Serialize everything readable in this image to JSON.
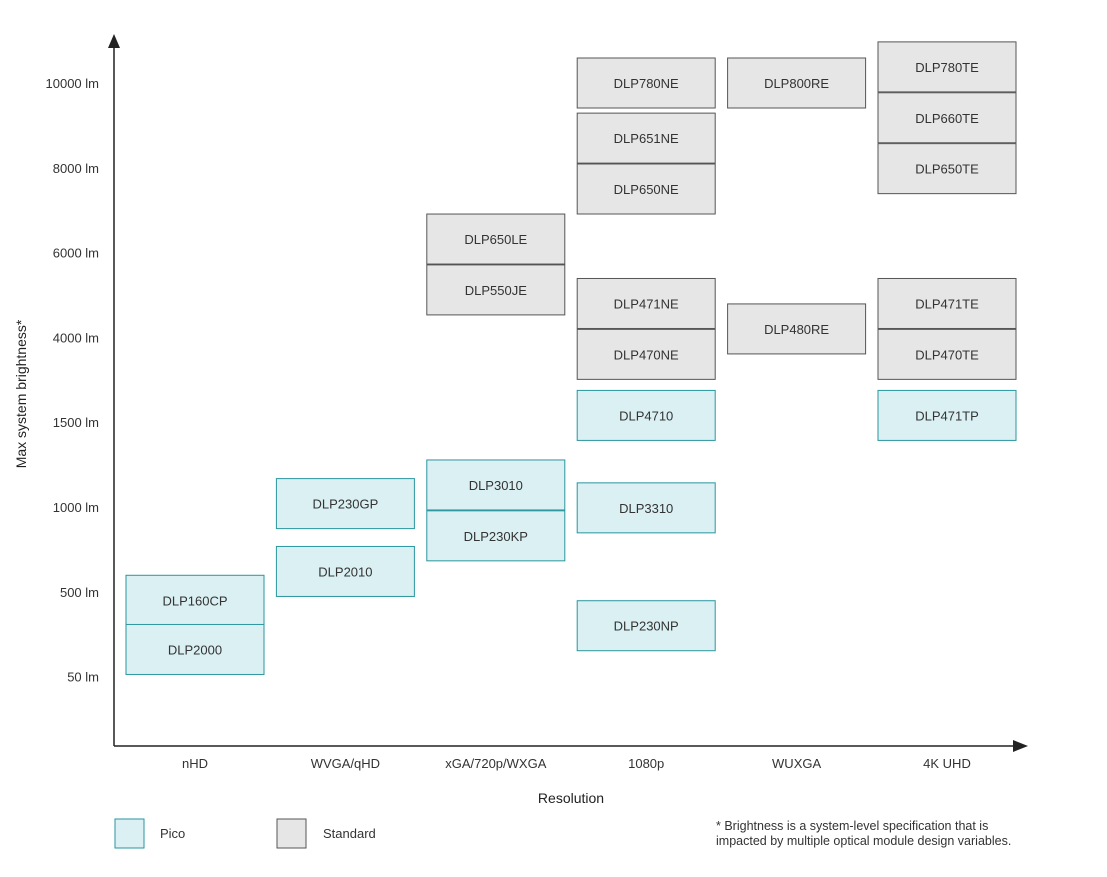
{
  "chart_data": {
    "type": "table",
    "title": "",
    "xlabel": "Resolution",
    "ylabel": "Max system brightness*",
    "categories": [
      "nHD",
      "WVGA/qHD",
      "xGA/720p/WXGA",
      "1080p",
      "WUXGA",
      "4K UHD"
    ],
    "y_ticks": [
      "50 lm",
      "500 lm",
      "1000 lm",
      "1500 lm",
      "4000 lm",
      "6000 lm",
      "8000 lm",
      "10000 lm"
    ],
    "legend": [
      {
        "key": "pico",
        "label": "Pico",
        "color": "#daf0f3",
        "stroke": "#2a969e"
      },
      {
        "key": "standard",
        "label": "Standard",
        "color": "#e6e6e6",
        "stroke": "#555555"
      }
    ],
    "products": [
      {
        "name": "DLP160CP",
        "category": "nHD",
        "type": "pico",
        "brightness_level": 0.9
      },
      {
        "name": "DLP2000",
        "category": "nHD",
        "type": "pico",
        "brightness_level": 0.32
      },
      {
        "name": "DLP230GP",
        "category": "WVGA/qHD",
        "type": "pico",
        "brightness_level": 2.04
      },
      {
        "name": "DLP2010",
        "category": "WVGA/qHD",
        "type": "pico",
        "brightness_level": 1.24
      },
      {
        "name": "DLP3010",
        "category": "xGA/720p/WXGA",
        "type": "pico",
        "brightness_level": 2.26
      },
      {
        "name": "DLP230KP",
        "category": "xGA/720p/WXGA",
        "type": "pico",
        "brightness_level": 1.66
      },
      {
        "name": "DLP780NE",
        "category": "1080p",
        "type": "standard",
        "brightness_level": 7.0
      },
      {
        "name": "DLP651NE",
        "category": "1080p",
        "type": "standard",
        "brightness_level": 6.35
      },
      {
        "name": "DLP650NE",
        "category": "1080p",
        "type": "standard",
        "brightness_level": 5.75
      },
      {
        "name": "DLP471NE",
        "category": "1080p",
        "type": "standard",
        "brightness_level": 4.4
      },
      {
        "name": "DLP470NE",
        "category": "1080p",
        "type": "standard",
        "brightness_level": 3.8
      },
      {
        "name": "DLP4710",
        "category": "1080p",
        "type": "pico",
        "brightness_level": 3.08
      },
      {
        "name": "DLP3310",
        "category": "1080p",
        "type": "pico",
        "brightness_level": 1.99
      },
      {
        "name": "DLP230NP",
        "category": "1080p",
        "type": "pico",
        "brightness_level": 0.6
      },
      {
        "name": "DLP650LE",
        "category": "xGA/720p/WXGA",
        "type": "standard",
        "brightness_level": 5.16
      },
      {
        "name": "DLP550JE",
        "category": "xGA/720p/WXGA",
        "type": "standard",
        "brightness_level": 4.56
      },
      {
        "name": "DLP800RE",
        "category": "WUXGA",
        "type": "standard",
        "brightness_level": 7.0
      },
      {
        "name": "DLP480RE",
        "category": "WUXGA",
        "type": "standard",
        "brightness_level": 4.1
      },
      {
        "name": "DLP780TE",
        "category": "4K UHD",
        "type": "standard",
        "brightness_level": 7.19
      },
      {
        "name": "DLP660TE",
        "category": "4K UHD",
        "type": "standard",
        "brightness_level": 6.59
      },
      {
        "name": "DLP650TE",
        "category": "4K UHD",
        "type": "standard",
        "brightness_level": 5.99
      },
      {
        "name": "DLP471TE",
        "category": "4K UHD",
        "type": "standard",
        "brightness_level": 4.4
      },
      {
        "name": "DLP470TE",
        "category": "4K UHD",
        "type": "standard",
        "brightness_level": 3.8
      },
      {
        "name": "DLP471TP",
        "category": "4K UHD",
        "type": "pico",
        "brightness_level": 3.08
      }
    ],
    "grid": false
  },
  "footnote": {
    "line1": "* Brightness is a system-level specification that is",
    "line2": "impacted by multiple optical module design variables."
  }
}
